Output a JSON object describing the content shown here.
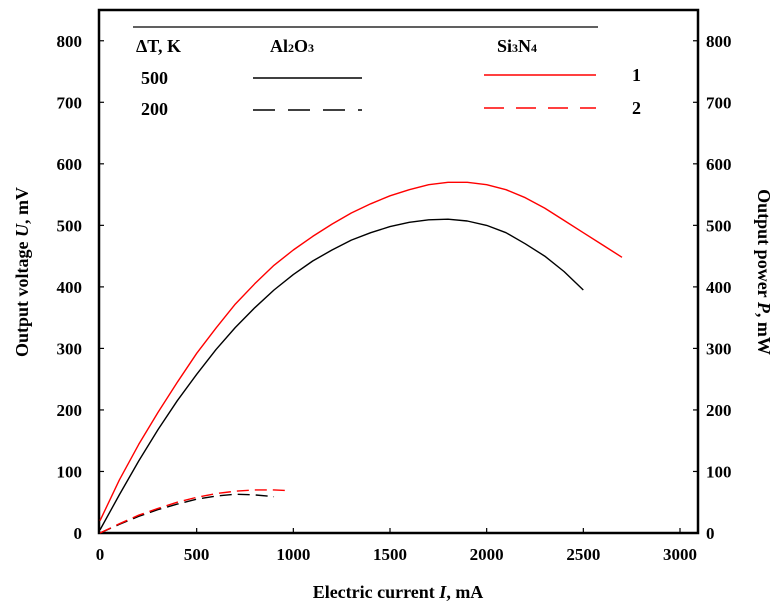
{
  "chart_data": {
    "type": "line",
    "xlabel": "Electric current I, mA",
    "xlabel_parts": [
      "Electric current ",
      "I",
      ", mA"
    ],
    "ylabel_left": "Output voltage U, mV",
    "ylabel_left_parts": [
      "Output voltage ",
      "U",
      ", mV"
    ],
    "ylabel_right": "Output power P, mW",
    "ylabel_right_parts": [
      "Output power ",
      "P",
      ", mW"
    ],
    "xlim": [
      0,
      3000
    ],
    "ylim": [
      0,
      850
    ],
    "x_ticks": [
      "0",
      "500",
      "1000",
      "1500",
      "2000",
      "2500",
      "3000"
    ],
    "y_ticks": [
      "0",
      "100",
      "200",
      "300",
      "400",
      "500",
      "600",
      "700",
      "800"
    ],
    "grid": false,
    "legend": {
      "placement": "top",
      "header_dt": "ΔT, K",
      "header_al": "Al2O3",
      "header_al_parts": [
        "Al",
        "2",
        "O",
        "3"
      ],
      "header_si": "Si3N4",
      "header_si_parts": [
        "Si",
        "3",
        "N",
        "4"
      ],
      "rows": [
        {
          "dt": "500",
          "id": "1"
        },
        {
          "dt": "200",
          "id": "2"
        }
      ]
    },
    "series": [
      {
        "material": "Al2O3",
        "dt": "500",
        "color": "#000000",
        "dash": "solid",
        "x": [
          0,
          100,
          200,
          300,
          400,
          500,
          600,
          700,
          800,
          900,
          1000,
          1100,
          1200,
          1300,
          1400,
          1500,
          1600,
          1700,
          1800,
          1900,
          2000,
          2100,
          2200,
          2300,
          2400,
          2500
        ],
        "y": [
          5,
          62,
          117,
          168,
          215,
          258,
          298,
          334,
          366,
          395,
          420,
          442,
          460,
          476,
          488,
          498,
          505,
          509,
          510,
          507,
          500,
          488,
          470,
          450,
          425,
          395
        ]
      },
      {
        "material": "Si3N4",
        "dt": "500",
        "color": "#ff0000",
        "dash": "solid",
        "x": [
          0,
          100,
          200,
          300,
          400,
          500,
          600,
          700,
          800,
          900,
          1000,
          1100,
          1200,
          1300,
          1400,
          1500,
          1600,
          1700,
          1800,
          1900,
          2000,
          2100,
          2200,
          2300,
          2400,
          2500,
          2600,
          2700
        ],
        "y": [
          20,
          86,
          144,
          196,
          245,
          292,
          333,
          372,
          405,
          435,
          460,
          482,
          502,
          520,
          535,
          548,
          558,
          566,
          570,
          570,
          566,
          558,
          545,
          528,
          508,
          488,
          468,
          448
        ]
      },
      {
        "material": "Al2O3",
        "dt": "200",
        "color": "#000000",
        "dash": "dashed",
        "x": [
          0,
          100,
          200,
          300,
          400,
          500,
          600,
          700,
          800,
          900
        ],
        "y": [
          0,
          14,
          27,
          38,
          47,
          55,
          60,
          63,
          62,
          59
        ]
      },
      {
        "material": "Si3N4",
        "dt": "200",
        "color": "#ff0000",
        "dash": "dashed",
        "x": [
          0,
          100,
          200,
          300,
          400,
          500,
          600,
          700,
          800,
          900,
          960
        ],
        "y": [
          0,
          15,
          29,
          40,
          50,
          58,
          64,
          68,
          70,
          70,
          69
        ]
      }
    ]
  }
}
